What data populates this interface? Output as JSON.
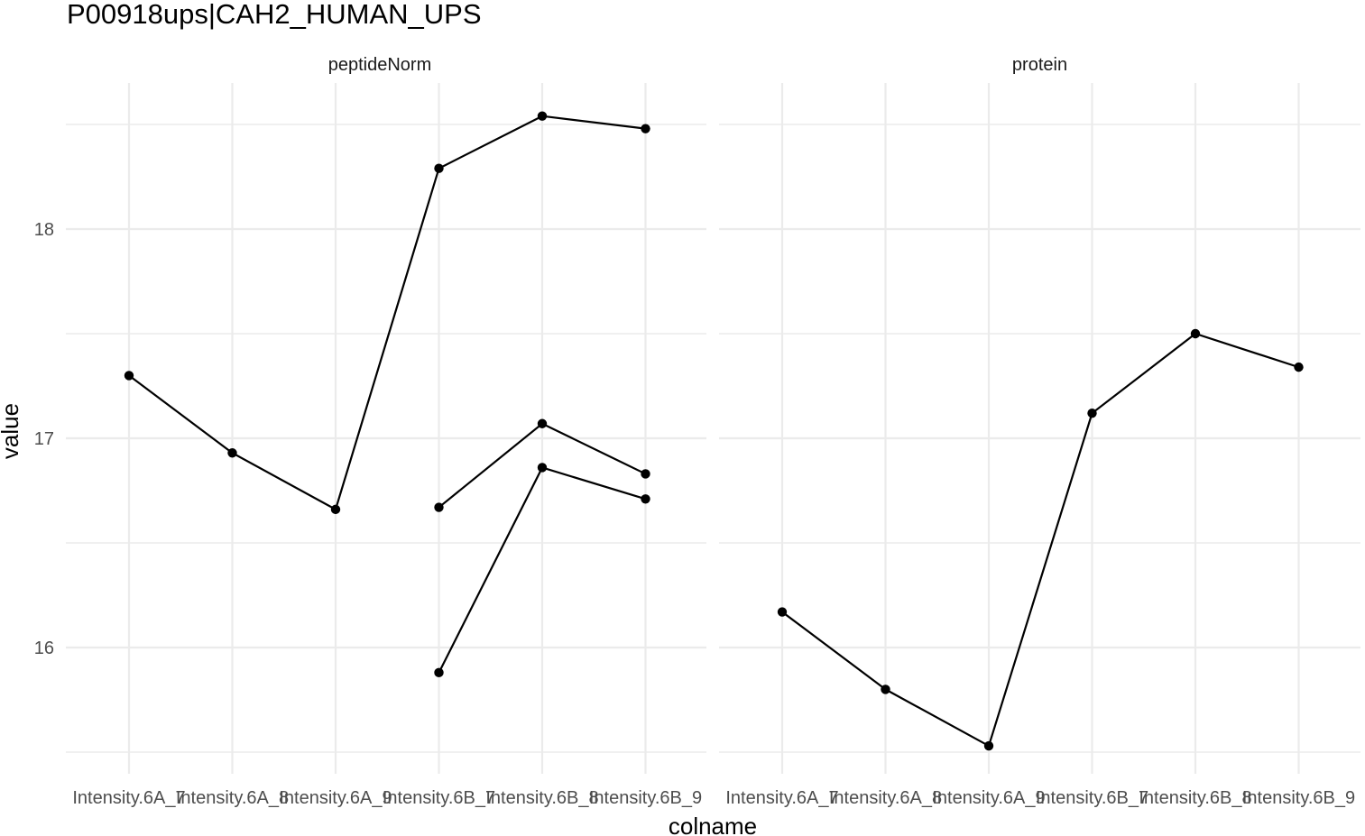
{
  "chart_data": {
    "type": "line",
    "title": "P00918ups|CAH2_HUMAN_UPS",
    "xlabel": "colname",
    "ylabel": "value",
    "categories": [
      "Intensity.6A_7",
      "Intensity.6A_8",
      "Intensity.6A_9",
      "Intensity.6B_7",
      "Intensity.6B_8",
      "Intensity.6B_9"
    ],
    "ylim": [
      15.47,
      18.54
    ],
    "yticks": [
      16,
      17,
      18
    ],
    "grid": true,
    "panels": [
      {
        "name": "peptideNorm",
        "series": [
          {
            "x": [
              "Intensity.6A_7",
              "Intensity.6A_8",
              "Intensity.6A_9",
              "Intensity.6B_7",
              "Intensity.6B_8",
              "Intensity.6B_9"
            ],
            "values": [
              17.3,
              16.93,
              16.66,
              18.29,
              18.54,
              18.48
            ]
          },
          {
            "x": [
              "Intensity.6B_7",
              "Intensity.6B_8",
              "Intensity.6B_9"
            ],
            "values": [
              16.67,
              17.07,
              16.83
            ]
          },
          {
            "x": [
              "Intensity.6B_7",
              "Intensity.6B_8",
              "Intensity.6B_9"
            ],
            "values": [
              15.88,
              16.86,
              16.71
            ]
          }
        ]
      },
      {
        "name": "protein",
        "series": [
          {
            "x": [
              "Intensity.6A_7",
              "Intensity.6A_8",
              "Intensity.6A_9",
              "Intensity.6B_7",
              "Intensity.6B_8",
              "Intensity.6B_9"
            ],
            "values": [
              16.17,
              15.8,
              15.53,
              17.12,
              17.5,
              17.34
            ]
          }
        ]
      }
    ]
  }
}
